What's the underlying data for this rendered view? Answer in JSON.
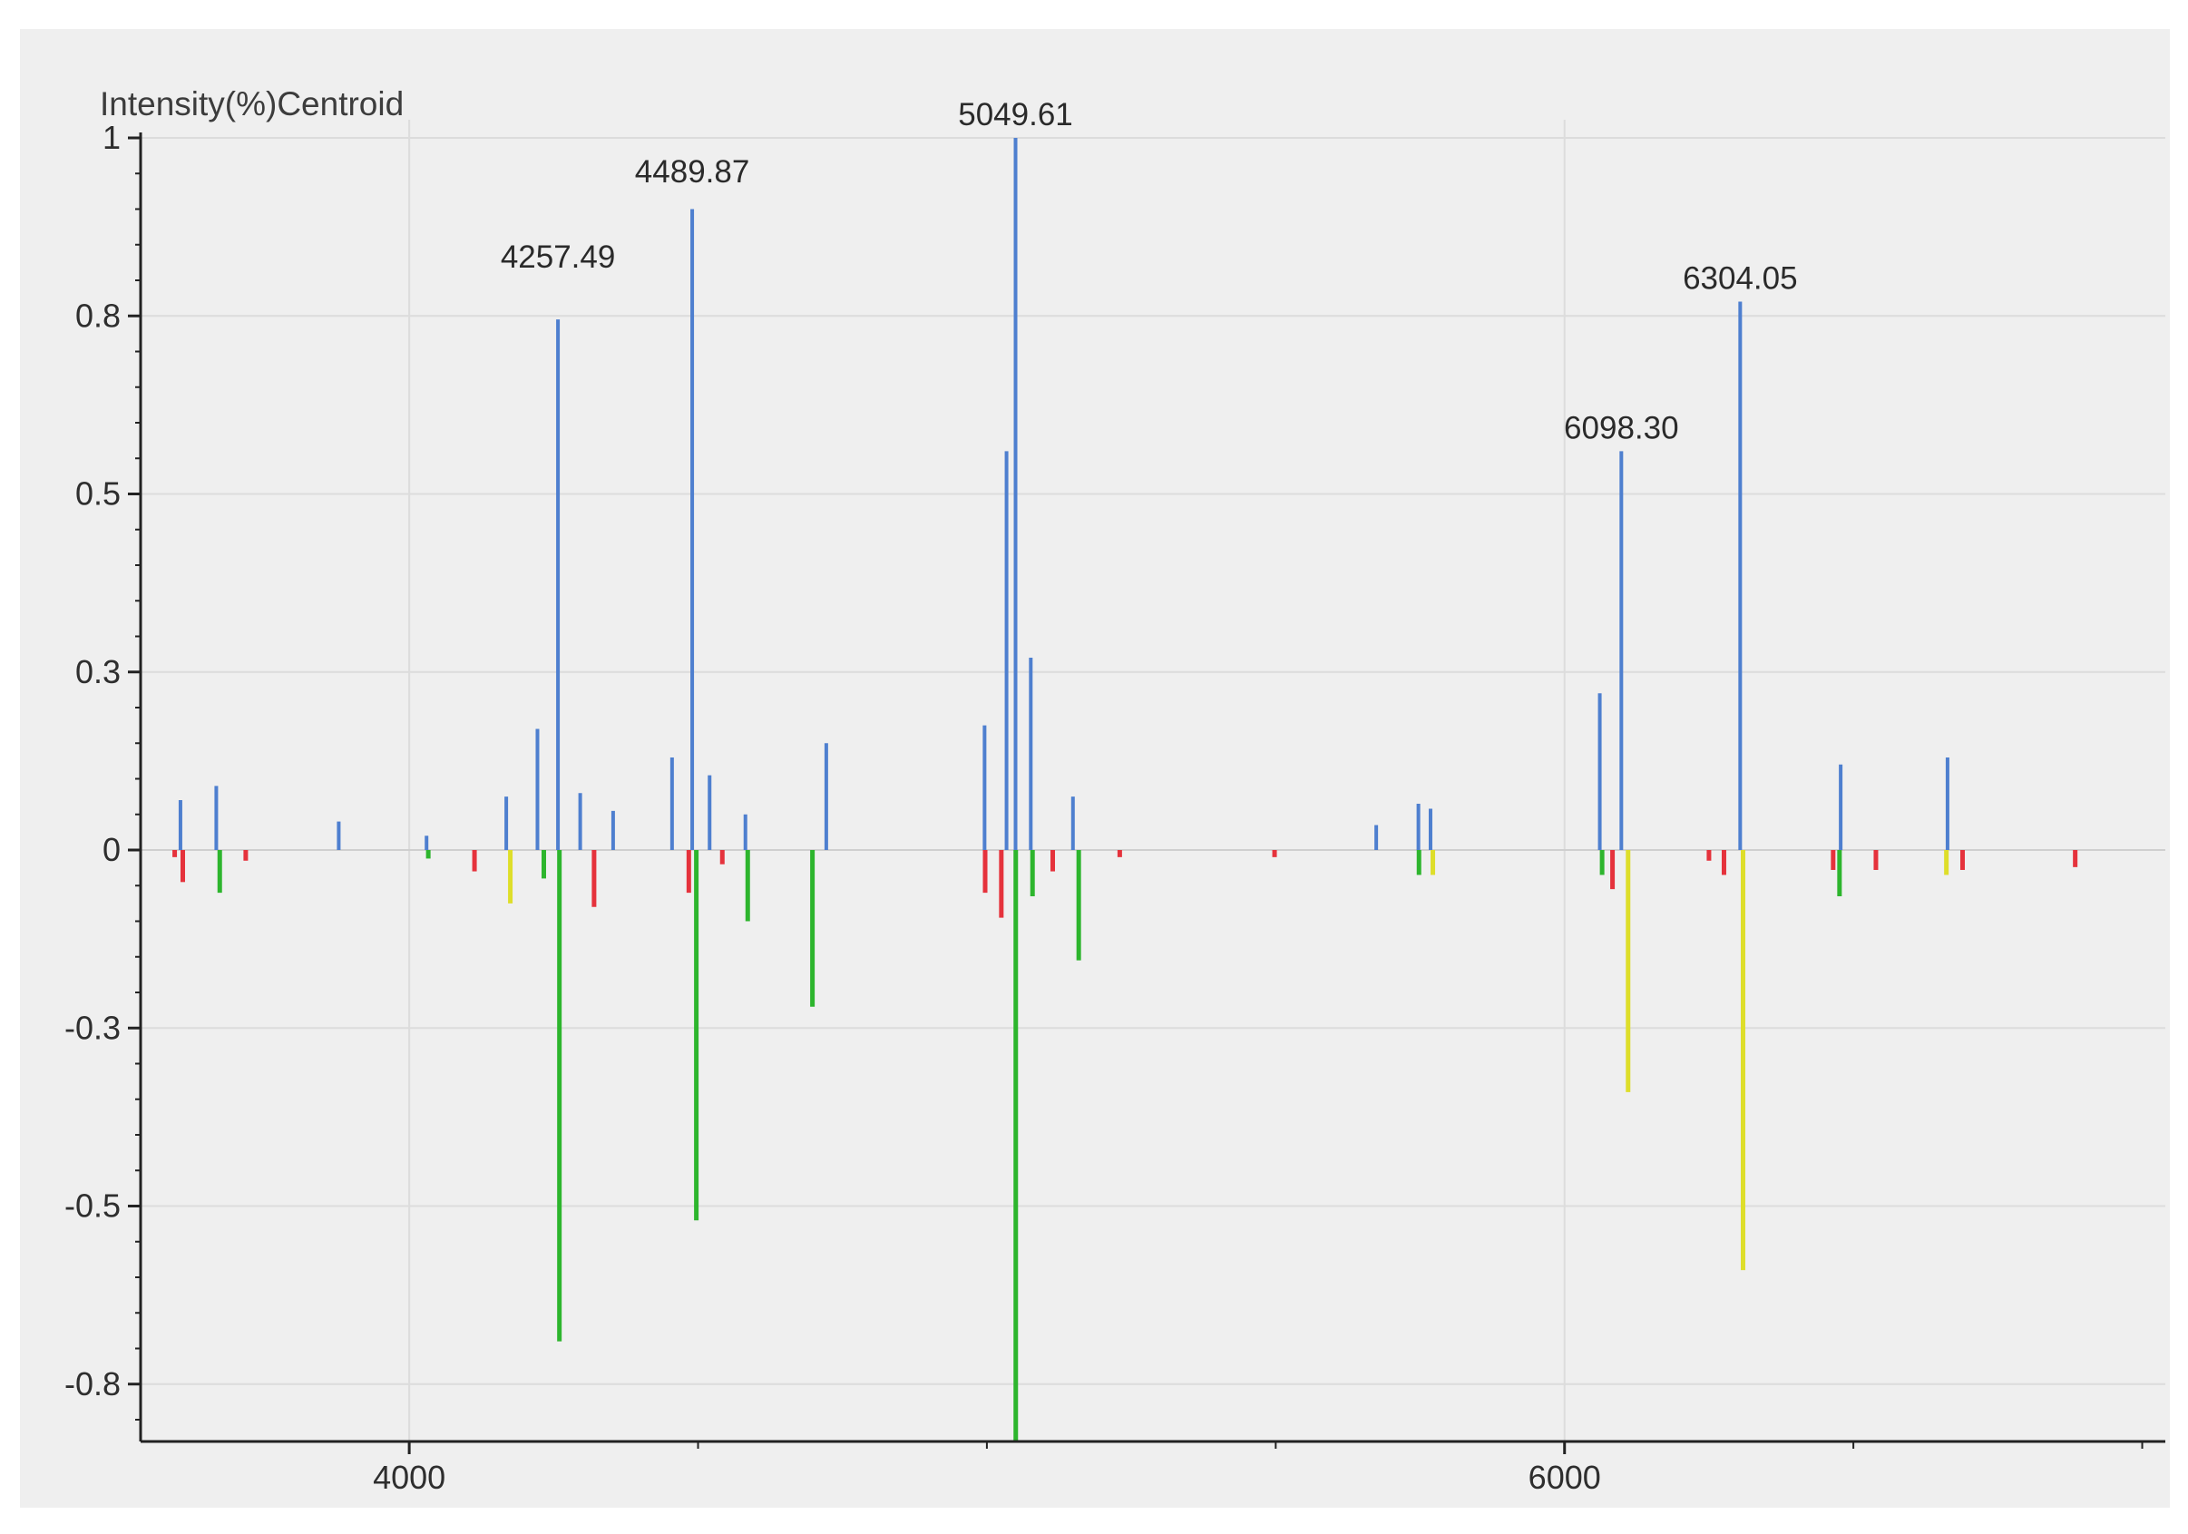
{
  "chart_data": {
    "type": "bar",
    "mode": "centroid",
    "ylabel": "Intensity(%)Centroid",
    "xlabel": "",
    "xlim": [
      3535,
      7040
    ],
    "ylim": [
      -0.834,
      1.0
    ],
    "x_ticks": [
      4000,
      6000
    ],
    "x_tick_labels": [
      "4000",
      "6000"
    ],
    "x_minor_ticks": [
      3500,
      4500,
      5000,
      5500,
      6500,
      7000
    ],
    "y_ticks": [
      1,
      0.8,
      0.5,
      0.3,
      0,
      -0.3,
      -0.5,
      -0.8
    ],
    "y_tick_labels": [
      "1",
      "0.8",
      "0.5",
      "0.3",
      "0",
      "-0.3",
      "-0.5",
      "-0.8"
    ],
    "y_tick_positions": [
      1.0,
      0.75,
      0.5,
      0.25,
      0.0,
      -0.25,
      -0.5,
      -0.75
    ],
    "grid": true,
    "legend": "none",
    "colors": {
      "blue": "#4e7fcf",
      "red": "#e5323c",
      "green": "#2db52d",
      "yellow": "#dede2a",
      "axis": "#222222",
      "grid": "#dcdcdc",
      "background": "#efefef"
    },
    "peak_labels": [
      {
        "x": 4257.49,
        "y": 0.8,
        "text": "4257.49"
      },
      {
        "x": 4489.87,
        "y": 0.92,
        "text": "4489.87"
      },
      {
        "x": 5049.61,
        "y": 1.0,
        "text": "5049.61"
      },
      {
        "x": 6098.3,
        "y": 0.56,
        "text": "6098.30"
      },
      {
        "x": 6304.05,
        "y": 0.77,
        "text": "6304.05"
      }
    ],
    "series": [
      {
        "color": "blue",
        "points": [
          [
            3604,
            0.07
          ],
          [
            3666,
            0.09
          ],
          [
            3878,
            0.04
          ],
          [
            4030,
            0.02
          ],
          [
            4168,
            0.075
          ],
          [
            4222,
            0.17
          ],
          [
            4257.49,
            0.745
          ],
          [
            4296,
            0.08
          ],
          [
            4353,
            0.055
          ],
          [
            4455,
            0.13
          ],
          [
            4489.87,
            0.9
          ],
          [
            4520,
            0.105
          ],
          [
            4582,
            0.05
          ],
          [
            4722,
            0.15
          ],
          [
            4996,
            0.175
          ],
          [
            5034,
            0.56
          ],
          [
            5049.61,
            1.0
          ],
          [
            5076,
            0.27
          ],
          [
            5149,
            0.075
          ],
          [
            5674,
            0.035
          ],
          [
            5747,
            0.065
          ],
          [
            5768,
            0.058
          ],
          [
            6061,
            0.22
          ],
          [
            6098.3,
            0.56
          ],
          [
            6304.05,
            0.77
          ],
          [
            6478,
            0.12
          ],
          [
            6663,
            0.13
          ]
        ]
      },
      {
        "color": "red",
        "points": [
          [
            3594,
            -0.01
          ],
          [
            3608,
            -0.045
          ],
          [
            3717,
            -0.015
          ],
          [
            4113,
            -0.03
          ],
          [
            4320,
            -0.08
          ],
          [
            4484,
            -0.06
          ],
          [
            4542,
            -0.02
          ],
          [
            4997,
            -0.06
          ],
          [
            5025,
            -0.095
          ],
          [
            5114,
            -0.03
          ],
          [
            5230,
            -0.01
          ],
          [
            5498,
            -0.01
          ],
          [
            6083,
            -0.055
          ],
          [
            6250,
            -0.015
          ],
          [
            6276,
            -0.035
          ],
          [
            6465,
            -0.028
          ],
          [
            6539,
            -0.028
          ],
          [
            6689,
            -0.028
          ],
          [
            6884,
            -0.024
          ]
        ]
      },
      {
        "color": "green",
        "points": [
          [
            3672,
            -0.06
          ],
          [
            4033,
            -0.012
          ],
          [
            4233,
            -0.04
          ],
          [
            4260,
            -0.69
          ],
          [
            4497,
            -0.52
          ],
          [
            4586,
            -0.1
          ],
          [
            4698,
            -0.22
          ],
          [
            5050,
            -0.834
          ],
          [
            5079,
            -0.065
          ],
          [
            5159,
            -0.155
          ],
          [
            5748,
            -0.035
          ],
          [
            6065,
            -0.035
          ],
          [
            6476,
            -0.065
          ]
        ]
      },
      {
        "color": "yellow",
        "points": [
          [
            4175,
            -0.075
          ],
          [
            5772,
            -0.035
          ],
          [
            6110,
            -0.34
          ],
          [
            6309,
            -0.59
          ],
          [
            6661,
            -0.035
          ]
        ]
      }
    ]
  }
}
